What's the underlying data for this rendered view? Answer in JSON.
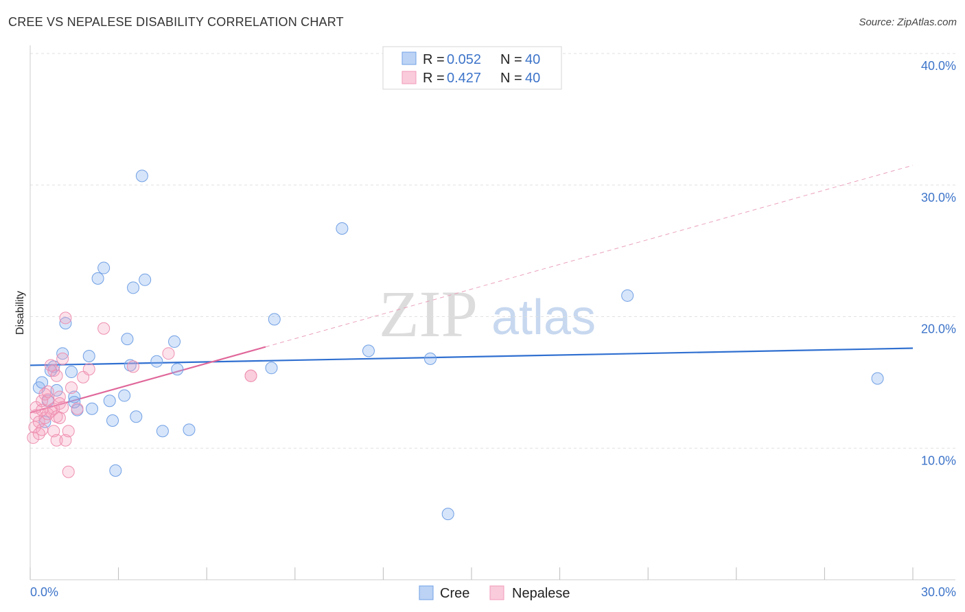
{
  "header": {
    "title": "CREE VS NEPALESE DISABILITY CORRELATION CHART",
    "source": "Source: ZipAtlas.com"
  },
  "watermark": {
    "zip": "ZIP",
    "atlas": "atlas"
  },
  "legend_top": {
    "rows": [
      {
        "r_label": "R = ",
        "r_value": "0.052",
        "n_label": "N = ",
        "n_value": "40",
        "color": "#6fa0e6"
      },
      {
        "r_label": "R = ",
        "r_value": "0.427",
        "n_label": "N = ",
        "n_value": "40",
        "color": "#f19ab8"
      }
    ]
  },
  "legend_bottom": {
    "items": [
      "Cree",
      "Nepalese"
    ]
  },
  "chart_data": {
    "type": "scatter",
    "ylabel": "Disability",
    "xlim": [
      0,
      30
    ],
    "ylim": [
      0,
      40
    ],
    "x_ticks": [
      "0.0%",
      "30.0%"
    ],
    "y_ticks": [
      {
        "v": 10,
        "label": "10.0%"
      },
      {
        "v": 20,
        "label": "20.0%"
      },
      {
        "v": 30,
        "label": "30.0%"
      },
      {
        "v": 40,
        "label": "40.0%"
      }
    ],
    "colors": {
      "cree": "#5b8fe0",
      "nepalese": "#ee8fb0",
      "cree_line": "#2f6fd0",
      "nep_line": "#e0679a"
    },
    "series": [
      {
        "name": "Cree",
        "points": [
          [
            0.3,
            14.6
          ],
          [
            0.4,
            15.0
          ],
          [
            0.6,
            13.6
          ],
          [
            0.8,
            16.2
          ],
          [
            0.9,
            14.4
          ],
          [
            1.1,
            17.2
          ],
          [
            1.2,
            19.5
          ],
          [
            1.4,
            15.8
          ],
          [
            1.5,
            13.9
          ],
          [
            1.6,
            12.9
          ],
          [
            2.0,
            17.0
          ],
          [
            2.1,
            13.0
          ],
          [
            2.3,
            22.9
          ],
          [
            2.5,
            23.7
          ],
          [
            2.7,
            13.6
          ],
          [
            2.8,
            12.1
          ],
          [
            2.9,
            8.3
          ],
          [
            3.2,
            14.0
          ],
          [
            3.3,
            18.3
          ],
          [
            3.5,
            22.2
          ],
          [
            3.6,
            12.4
          ],
          [
            3.8,
            30.7
          ],
          [
            3.9,
            22.8
          ],
          [
            4.3,
            16.6
          ],
          [
            4.5,
            11.3
          ],
          [
            4.9,
            18.1
          ],
          [
            5.0,
            16.0
          ],
          [
            5.4,
            11.4
          ],
          [
            8.2,
            16.1
          ],
          [
            8.3,
            19.8
          ],
          [
            10.6,
            26.7
          ],
          [
            11.5,
            17.4
          ],
          [
            13.6,
            16.8
          ],
          [
            14.2,
            5.0
          ],
          [
            20.3,
            21.6
          ],
          [
            28.8,
            15.3
          ],
          [
            1.5,
            13.5
          ],
          [
            0.5,
            12.0
          ],
          [
            3.4,
            16.3
          ],
          [
            0.7,
            15.9
          ]
        ],
        "trend": {
          "x": [
            0,
            30
          ],
          "y": [
            16.3,
            17.6
          ]
        }
      },
      {
        "name": "Nepalese",
        "points": [
          [
            0.1,
            10.8
          ],
          [
            0.15,
            11.6
          ],
          [
            0.2,
            12.5
          ],
          [
            0.2,
            13.1
          ],
          [
            0.3,
            11.1
          ],
          [
            0.3,
            12.0
          ],
          [
            0.4,
            11.4
          ],
          [
            0.4,
            13.6
          ],
          [
            0.5,
            12.3
          ],
          [
            0.5,
            14.1
          ],
          [
            0.6,
            12.6
          ],
          [
            0.6,
            13.7
          ],
          [
            0.7,
            12.8
          ],
          [
            0.7,
            16.3
          ],
          [
            0.8,
            11.3
          ],
          [
            0.8,
            13.0
          ],
          [
            0.8,
            15.9
          ],
          [
            0.9,
            10.6
          ],
          [
            0.9,
            12.4
          ],
          [
            0.9,
            15.5
          ],
          [
            1.0,
            13.9
          ],
          [
            1.0,
            13.4
          ],
          [
            1.1,
            16.8
          ],
          [
            1.1,
            13.1
          ],
          [
            1.2,
            19.9
          ],
          [
            1.2,
            10.6
          ],
          [
            1.3,
            11.3
          ],
          [
            1.3,
            8.2
          ],
          [
            1.4,
            14.6
          ],
          [
            1.6,
            13.0
          ],
          [
            1.8,
            15.4
          ],
          [
            2.0,
            16.0
          ],
          [
            2.5,
            19.1
          ],
          [
            3.5,
            16.2
          ],
          [
            4.7,
            17.2
          ],
          [
            7.5,
            15.5
          ],
          [
            7.5,
            15.5
          ],
          [
            0.4,
            12.9
          ],
          [
            0.6,
            14.3
          ],
          [
            1.0,
            12.3
          ]
        ],
        "trend": {
          "x": [
            0,
            8.0
          ],
          "y": [
            12.7,
            17.7
          ]
        },
        "trend_extension": {
          "x": [
            8.0,
            30
          ],
          "y": [
            17.7,
            31.5
          ]
        }
      }
    ]
  }
}
